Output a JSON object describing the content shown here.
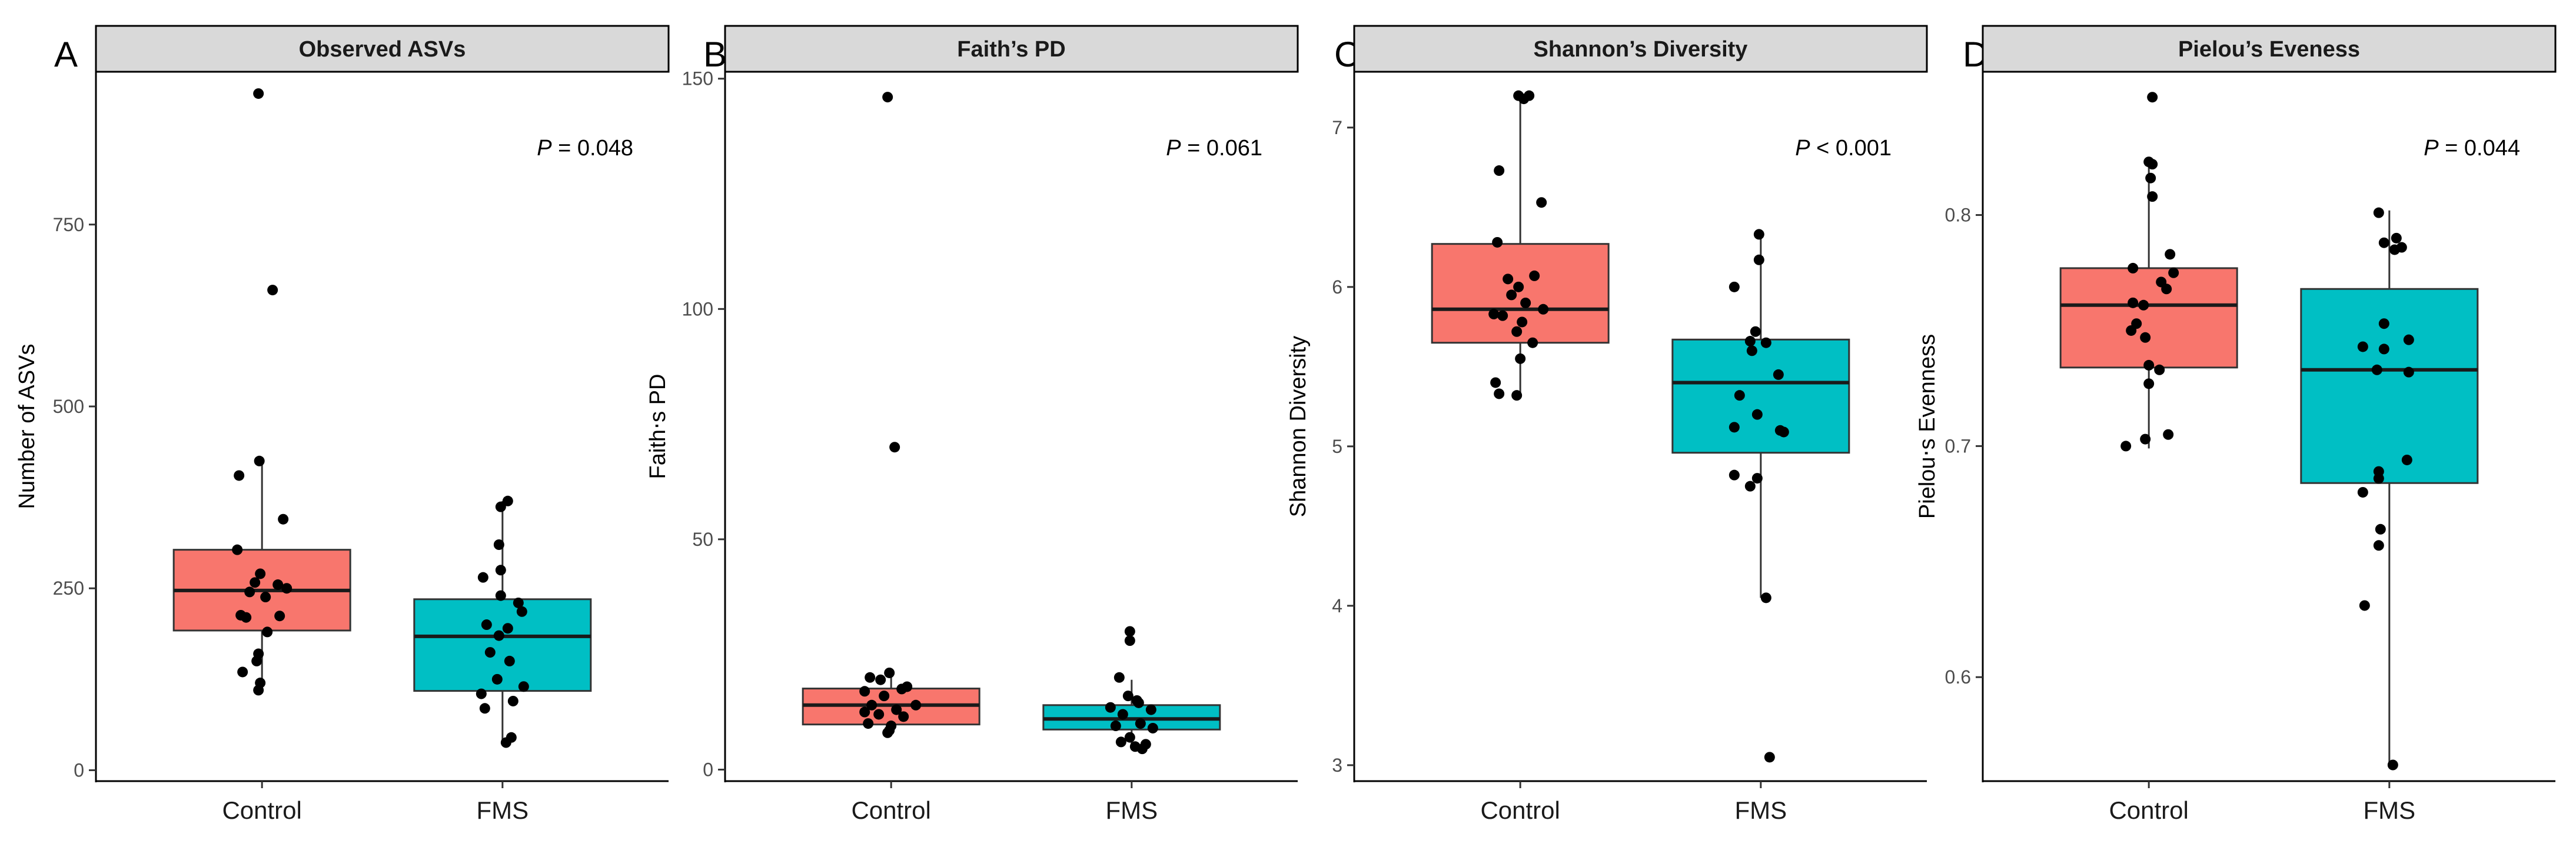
{
  "chart_data": [
    {
      "type": "boxplot",
      "panel_letter": "A",
      "title": "Observed ASVs",
      "ylabel": "Number of ASVs",
      "xlabel": "",
      "ylim": [
        -15,
        960
      ],
      "yticks": [
        0,
        250,
        500,
        750
      ],
      "ytick_labels": [
        "0",
        "250",
        "500",
        "750"
      ],
      "categories": [
        "Control",
        "FMS"
      ],
      "pvalue_prefix": "P",
      "pvalue_text": " = 0.048",
      "boxes": [
        {
          "group": "Control",
          "color": "#F8766D",
          "whisker_low": 110,
          "q1": 192,
          "median": 247,
          "q3": 303,
          "whisker_high": 425
        },
        {
          "group": "FMS",
          "color": "#00BFC4",
          "whisker_low": 38,
          "q1": 109,
          "median": 184,
          "q3": 235,
          "whisker_high": 370
        }
      ],
      "points": [
        {
          "group": "Control",
          "jitter": -0.04,
          "y": 930
        },
        {
          "group": "Control",
          "jitter": 0.12,
          "y": 660
        },
        {
          "group": "Control",
          "jitter": -0.03,
          "y": 425
        },
        {
          "group": "Control",
          "jitter": -0.26,
          "y": 405
        },
        {
          "group": "Control",
          "jitter": 0.24,
          "y": 345
        },
        {
          "group": "Control",
          "jitter": -0.28,
          "y": 303
        },
        {
          "group": "Control",
          "jitter": -0.02,
          "y": 270
        },
        {
          "group": "Control",
          "jitter": -0.08,
          "y": 258
        },
        {
          "group": "Control",
          "jitter": 0.18,
          "y": 255
        },
        {
          "group": "Control",
          "jitter": 0.28,
          "y": 250
        },
        {
          "group": "Control",
          "jitter": -0.14,
          "y": 245
        },
        {
          "group": "Control",
          "jitter": 0.04,
          "y": 238
        },
        {
          "group": "Control",
          "jitter": -0.24,
          "y": 213
        },
        {
          "group": "Control",
          "jitter": -0.18,
          "y": 210
        },
        {
          "group": "Control",
          "jitter": 0.2,
          "y": 212
        },
        {
          "group": "Control",
          "jitter": 0.06,
          "y": 190
        },
        {
          "group": "Control",
          "jitter": -0.04,
          "y": 160
        },
        {
          "group": "Control",
          "jitter": -0.06,
          "y": 150
        },
        {
          "group": "Control",
          "jitter": -0.22,
          "y": 135
        },
        {
          "group": "Control",
          "jitter": -0.02,
          "y": 120
        },
        {
          "group": "Control",
          "jitter": -0.04,
          "y": 110
        },
        {
          "group": "FMS",
          "jitter": 0.06,
          "y": 370
        },
        {
          "group": "FMS",
          "jitter": -0.02,
          "y": 362
        },
        {
          "group": "FMS",
          "jitter": -0.04,
          "y": 310
        },
        {
          "group": "FMS",
          "jitter": -0.02,
          "y": 275
        },
        {
          "group": "FMS",
          "jitter": -0.22,
          "y": 265
        },
        {
          "group": "FMS",
          "jitter": -0.02,
          "y": 240
        },
        {
          "group": "FMS",
          "jitter": 0.18,
          "y": 230
        },
        {
          "group": "FMS",
          "jitter": 0.22,
          "y": 218
        },
        {
          "group": "FMS",
          "jitter": -0.18,
          "y": 200
        },
        {
          "group": "FMS",
          "jitter": 0.06,
          "y": 195
        },
        {
          "group": "FMS",
          "jitter": -0.04,
          "y": 185
        },
        {
          "group": "FMS",
          "jitter": -0.14,
          "y": 162
        },
        {
          "group": "FMS",
          "jitter": 0.08,
          "y": 150
        },
        {
          "group": "FMS",
          "jitter": -0.06,
          "y": 125
        },
        {
          "group": "FMS",
          "jitter": 0.24,
          "y": 115
        },
        {
          "group": "FMS",
          "jitter": -0.24,
          "y": 105
        },
        {
          "group": "FMS",
          "jitter": 0.12,
          "y": 95
        },
        {
          "group": "FMS",
          "jitter": -0.2,
          "y": 85
        },
        {
          "group": "FMS",
          "jitter": 0.1,
          "y": 45
        },
        {
          "group": "FMS",
          "jitter": 0.04,
          "y": 38
        }
      ]
    },
    {
      "type": "boxplot",
      "panel_letter": "B",
      "title": "Faith’s PD",
      "ylabel": "Faith‧s PD",
      "xlabel": "",
      "ylim": [
        -2.5,
        151.5
      ],
      "yticks": [
        0,
        50,
        100,
        150
      ],
      "ytick_labels": [
        "0",
        "50",
        "100",
        "150"
      ],
      "categories": [
        "Control",
        "FMS"
      ],
      "pvalue_prefix": "P",
      "pvalue_text": " = 0.061",
      "boxes": [
        {
          "group": "Control",
          "color": "#F8766D",
          "whisker_low": 8,
          "q1": 9.8,
          "median": 14,
          "q3": 17.6,
          "whisker_high": 21
        },
        {
          "group": "FMS",
          "color": "#00BFC4",
          "whisker_low": 4.5,
          "q1": 8.7,
          "median": 11,
          "q3": 14,
          "whisker_high": 19.5
        }
      ],
      "points": [
        {
          "group": "Control",
          "jitter": -0.04,
          "y": 146
        },
        {
          "group": "Control",
          "jitter": 0.04,
          "y": 70
        },
        {
          "group": "Control",
          "jitter": -0.02,
          "y": 21
        },
        {
          "group": "Control",
          "jitter": -0.24,
          "y": 20
        },
        {
          "group": "Control",
          "jitter": -0.12,
          "y": 19.5
        },
        {
          "group": "Control",
          "jitter": 0.18,
          "y": 18
        },
        {
          "group": "Control",
          "jitter": 0.12,
          "y": 17.5
        },
        {
          "group": "Control",
          "jitter": -0.3,
          "y": 17
        },
        {
          "group": "Control",
          "jitter": -0.08,
          "y": 16
        },
        {
          "group": "Control",
          "jitter": 0.28,
          "y": 14
        },
        {
          "group": "Control",
          "jitter": -0.22,
          "y": 14
        },
        {
          "group": "Control",
          "jitter": 0.06,
          "y": 13
        },
        {
          "group": "Control",
          "jitter": -0.3,
          "y": 12.5
        },
        {
          "group": "Control",
          "jitter": -0.14,
          "y": 12
        },
        {
          "group": "Control",
          "jitter": 0.14,
          "y": 11.5
        },
        {
          "group": "Control",
          "jitter": -0.26,
          "y": 10
        },
        {
          "group": "Control",
          "jitter": 0.0,
          "y": 9.5
        },
        {
          "group": "Control",
          "jitter": -0.02,
          "y": 8.5
        },
        {
          "group": "Control",
          "jitter": -0.04,
          "y": 8
        },
        {
          "group": "FMS",
          "jitter": -0.02,
          "y": 30
        },
        {
          "group": "FMS",
          "jitter": -0.02,
          "y": 28
        },
        {
          "group": "FMS",
          "jitter": -0.14,
          "y": 20
        },
        {
          "group": "FMS",
          "jitter": -0.04,
          "y": 16
        },
        {
          "group": "FMS",
          "jitter": 0.06,
          "y": 15
        },
        {
          "group": "FMS",
          "jitter": 0.08,
          "y": 14.5
        },
        {
          "group": "FMS",
          "jitter": -0.24,
          "y": 13.5
        },
        {
          "group": "FMS",
          "jitter": 0.22,
          "y": 13
        },
        {
          "group": "FMS",
          "jitter": -0.1,
          "y": 12
        },
        {
          "group": "FMS",
          "jitter": 0.1,
          "y": 10
        },
        {
          "group": "FMS",
          "jitter": -0.18,
          "y": 9.5
        },
        {
          "group": "FMS",
          "jitter": 0.24,
          "y": 9
        },
        {
          "group": "FMS",
          "jitter": -0.02,
          "y": 7
        },
        {
          "group": "FMS",
          "jitter": -0.12,
          "y": 6
        },
        {
          "group": "FMS",
          "jitter": 0.16,
          "y": 5.5
        },
        {
          "group": "FMS",
          "jitter": 0.04,
          "y": 5
        },
        {
          "group": "FMS",
          "jitter": 0.12,
          "y": 4.5
        }
      ]
    },
    {
      "type": "boxplot",
      "panel_letter": "C",
      "title": "Shannon’s Diversity",
      "ylabel": "Shannon Diversity",
      "xlabel": "",
      "ylim": [
        2.9,
        7.35
      ],
      "yticks": [
        3,
        4,
        5,
        6,
        7
      ],
      "ytick_labels": [
        "3",
        "4",
        "5",
        "6",
        "7"
      ],
      "categories": [
        "Control",
        "FMS"
      ],
      "pvalue_prefix": "P",
      "pvalue_text": " < 0.001",
      "boxes": [
        {
          "group": "Control",
          "color": "#F8766D",
          "whisker_low": 5.32,
          "q1": 5.65,
          "median": 5.86,
          "q3": 6.27,
          "whisker_high": 7.2
        },
        {
          "group": "FMS",
          "color": "#00BFC4",
          "whisker_low": 4.05,
          "q1": 4.96,
          "median": 5.4,
          "q3": 5.67,
          "whisker_high": 6.33
        }
      ],
      "points": [
        {
          "group": "Control",
          "jitter": -0.02,
          "y": 7.2
        },
        {
          "group": "Control",
          "jitter": 0.04,
          "y": 7.18
        },
        {
          "group": "Control",
          "jitter": 0.1,
          "y": 7.2
        },
        {
          "group": "Control",
          "jitter": -0.24,
          "y": 6.73
        },
        {
          "group": "Control",
          "jitter": 0.24,
          "y": 6.53
        },
        {
          "group": "Control",
          "jitter": -0.26,
          "y": 6.28
        },
        {
          "group": "Control",
          "jitter": 0.16,
          "y": 6.07
        },
        {
          "group": "Control",
          "jitter": -0.14,
          "y": 6.05
        },
        {
          "group": "Control",
          "jitter": -0.02,
          "y": 6.0
        },
        {
          "group": "Control",
          "jitter": -0.1,
          "y": 5.95
        },
        {
          "group": "Control",
          "jitter": 0.06,
          "y": 5.9
        },
        {
          "group": "Control",
          "jitter": 0.26,
          "y": 5.86
        },
        {
          "group": "Control",
          "jitter": -0.3,
          "y": 5.83
        },
        {
          "group": "Control",
          "jitter": -0.2,
          "y": 5.82
        },
        {
          "group": "Control",
          "jitter": 0.02,
          "y": 5.78
        },
        {
          "group": "Control",
          "jitter": -0.04,
          "y": 5.72
        },
        {
          "group": "Control",
          "jitter": 0.14,
          "y": 5.65
        },
        {
          "group": "Control",
          "jitter": 0.0,
          "y": 5.55
        },
        {
          "group": "Control",
          "jitter": -0.28,
          "y": 5.4
        },
        {
          "group": "Control",
          "jitter": -0.24,
          "y": 5.33
        },
        {
          "group": "Control",
          "jitter": -0.04,
          "y": 5.32
        },
        {
          "group": "FMS",
          "jitter": -0.02,
          "y": 6.33
        },
        {
          "group": "FMS",
          "jitter": -0.02,
          "y": 6.17
        },
        {
          "group": "FMS",
          "jitter": -0.3,
          "y": 6.0
        },
        {
          "group": "FMS",
          "jitter": -0.06,
          "y": 5.72
        },
        {
          "group": "FMS",
          "jitter": -0.12,
          "y": 5.66
        },
        {
          "group": "FMS",
          "jitter": 0.06,
          "y": 5.65
        },
        {
          "group": "FMS",
          "jitter": -0.1,
          "y": 5.6
        },
        {
          "group": "FMS",
          "jitter": 0.2,
          "y": 5.45
        },
        {
          "group": "FMS",
          "jitter": -0.24,
          "y": 5.32
        },
        {
          "group": "FMS",
          "jitter": -0.04,
          "y": 5.2
        },
        {
          "group": "FMS",
          "jitter": -0.3,
          "y": 5.12
        },
        {
          "group": "FMS",
          "jitter": 0.22,
          "y": 5.1
        },
        {
          "group": "FMS",
          "jitter": 0.26,
          "y": 5.09
        },
        {
          "group": "FMS",
          "jitter": -0.3,
          "y": 4.82
        },
        {
          "group": "FMS",
          "jitter": -0.04,
          "y": 4.8
        },
        {
          "group": "FMS",
          "jitter": -0.12,
          "y": 4.75
        },
        {
          "group": "FMS",
          "jitter": 0.06,
          "y": 4.05
        },
        {
          "group": "FMS",
          "jitter": 0.1,
          "y": 3.05
        }
      ]
    },
    {
      "type": "boxplot",
      "panel_letter": "D",
      "title": "Pielou’s Eveness",
      "ylabel": "Pielou‧s Evenness",
      "xlabel": "",
      "ylim": [
        0.555,
        0.862
      ],
      "yticks": [
        0.6,
        0.7,
        0.8
      ],
      "ytick_labels": [
        "0.6",
        "0.7",
        "0.8"
      ],
      "categories": [
        "Control",
        "FMS"
      ],
      "pvalue_prefix": "P",
      "pvalue_text": " = 0.044",
      "boxes": [
        {
          "group": "Control",
          "color": "#F8766D",
          "whisker_low": 0.699,
          "q1": 0.734,
          "median": 0.761,
          "q3": 0.777,
          "whisker_high": 0.824
        },
        {
          "group": "FMS",
          "color": "#00BFC4",
          "whisker_low": 0.562,
          "q1": 0.684,
          "median": 0.733,
          "q3": 0.768,
          "whisker_high": 0.802
        }
      ],
      "points": [
        {
          "group": "Control",
          "jitter": 0.04,
          "y": 0.851
        },
        {
          "group": "Control",
          "jitter": 0.0,
          "y": 0.823
        },
        {
          "group": "Control",
          "jitter": 0.04,
          "y": 0.822
        },
        {
          "group": "Control",
          "jitter": 0.02,
          "y": 0.816
        },
        {
          "group": "Control",
          "jitter": 0.04,
          "y": 0.808
        },
        {
          "group": "Control",
          "jitter": 0.24,
          "y": 0.783
        },
        {
          "group": "Control",
          "jitter": -0.18,
          "y": 0.777
        },
        {
          "group": "Control",
          "jitter": 0.28,
          "y": 0.775
        },
        {
          "group": "Control",
          "jitter": 0.14,
          "y": 0.771
        },
        {
          "group": "Control",
          "jitter": 0.2,
          "y": 0.768
        },
        {
          "group": "Control",
          "jitter": -0.18,
          "y": 0.762
        },
        {
          "group": "Control",
          "jitter": -0.06,
          "y": 0.761
        },
        {
          "group": "Control",
          "jitter": -0.14,
          "y": 0.753
        },
        {
          "group": "Control",
          "jitter": -0.2,
          "y": 0.75
        },
        {
          "group": "Control",
          "jitter": -0.04,
          "y": 0.747
        },
        {
          "group": "Control",
          "jitter": 0.0,
          "y": 0.735
        },
        {
          "group": "Control",
          "jitter": 0.12,
          "y": 0.733
        },
        {
          "group": "Control",
          "jitter": 0.0,
          "y": 0.727
        },
        {
          "group": "Control",
          "jitter": 0.22,
          "y": 0.705
        },
        {
          "group": "Control",
          "jitter": -0.04,
          "y": 0.703
        },
        {
          "group": "Control",
          "jitter": -0.26,
          "y": 0.7
        },
        {
          "group": "FMS",
          "jitter": -0.12,
          "y": 0.801
        },
        {
          "group": "FMS",
          "jitter": 0.08,
          "y": 0.79
        },
        {
          "group": "FMS",
          "jitter": -0.06,
          "y": 0.788
        },
        {
          "group": "FMS",
          "jitter": 0.14,
          "y": 0.786
        },
        {
          "group": "FMS",
          "jitter": 0.06,
          "y": 0.785
        },
        {
          "group": "FMS",
          "jitter": -0.06,
          "y": 0.753
        },
        {
          "group": "FMS",
          "jitter": 0.22,
          "y": 0.746
        },
        {
          "group": "FMS",
          "jitter": -0.3,
          "y": 0.743
        },
        {
          "group": "FMS",
          "jitter": -0.06,
          "y": 0.742
        },
        {
          "group": "FMS",
          "jitter": -0.14,
          "y": 0.733
        },
        {
          "group": "FMS",
          "jitter": 0.22,
          "y": 0.732
        },
        {
          "group": "FMS",
          "jitter": -0.12,
          "y": 0.689
        },
        {
          "group": "FMS",
          "jitter": 0.2,
          "y": 0.694
        },
        {
          "group": "FMS",
          "jitter": -0.12,
          "y": 0.686
        },
        {
          "group": "FMS",
          "jitter": -0.3,
          "y": 0.68
        },
        {
          "group": "FMS",
          "jitter": -0.1,
          "y": 0.664
        },
        {
          "group": "FMS",
          "jitter": -0.12,
          "y": 0.657
        },
        {
          "group": "FMS",
          "jitter": -0.28,
          "y": 0.631
        },
        {
          "group": "FMS",
          "jitter": 0.04,
          "y": 0.562
        }
      ]
    }
  ]
}
